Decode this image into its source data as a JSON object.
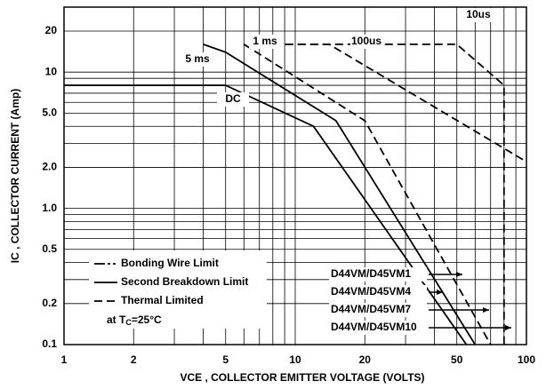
{
  "chart_data": {
    "type": "line",
    "xlabel": "VCE , COLLECTOR EMITTER VOLTAGE (VOLTS)",
    "ylabel": "IC , COLLECTOR CURRENT (Amp)",
    "xscale": "log",
    "yscale": "log",
    "xlim": [
      1,
      100
    ],
    "ylim": [
      0.1,
      30
    ],
    "xticks": [
      1,
      2,
      5,
      10,
      20,
      50,
      100
    ],
    "yticks": [
      0.1,
      0.2,
      0.5,
      {
        "value": 1,
        "label": "1.0"
      },
      {
        "value": 2,
        "label": "2.0"
      },
      {
        "value": 5,
        "label": "5.0"
      },
      10,
      20
    ],
    "xgrid": [
      1,
      2,
      3,
      4,
      5,
      6,
      7,
      8,
      9,
      10,
      20,
      30,
      40,
      50,
      60,
      70,
      80,
      90,
      100
    ],
    "ygrid": [
      0.1,
      0.2,
      0.3,
      0.4,
      0.5,
      0.6,
      0.7,
      0.8,
      0.9,
      1,
      2,
      3,
      4,
      5,
      6,
      7,
      8,
      9,
      10,
      20
    ],
    "series": [
      {
        "name": "DC",
        "style": "solid",
        "x": [
          1,
          5,
          12,
          55
        ],
        "values": [
          8,
          8,
          4,
          0.1
        ]
      },
      {
        "name": "5 ms",
        "style": "solid",
        "x": [
          4,
          5,
          15,
          60
        ],
        "values": [
          16,
          14,
          4.4,
          0.1
        ]
      },
      {
        "name": "1 ms",
        "style": "dashed",
        "x": [
          6,
          20,
          70
        ],
        "values": [
          16,
          4.4,
          0.1
        ]
      },
      {
        "name": "100us",
        "style": "dashed",
        "x": [
          8,
          14,
          100
        ],
        "values": [
          16,
          16,
          2.2
        ]
      },
      {
        "name": "10us",
        "style": "dashed",
        "x": [
          8,
          50,
          80,
          80
        ],
        "values": [
          16,
          16,
          8,
          0.1
        ]
      }
    ],
    "legend": [
      "Bonding Wire Limit",
      "Second Breakdown Limit",
      "Thermal Limited"
    ],
    "legend_note": {
      "prefix": "at T",
      "sub": "C",
      "suffix": "=25°C"
    },
    "devices": [
      "D44VM/D45VM1",
      "D44VM/D45VM4",
      "D44VM/D45VM7",
      "D44VM/D45VM10"
    ]
  }
}
